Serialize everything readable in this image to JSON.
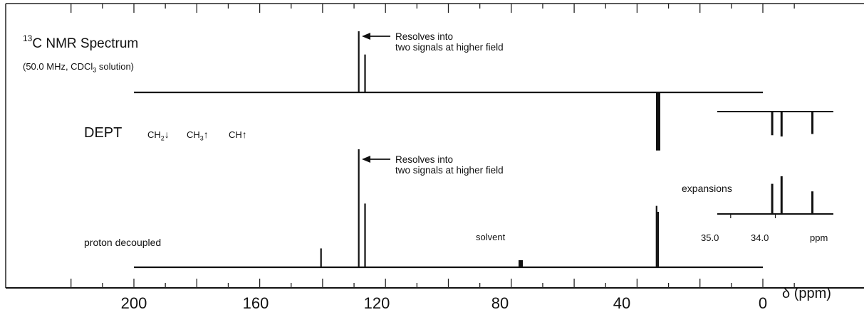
{
  "chart_data": {
    "type": "line",
    "title": "13C NMR Spectrum",
    "title_parts": {
      "sup": "13",
      "main": "C NMR Spectrum"
    },
    "conditions": {
      "prefix": "(50.0 MHz, CDCl",
      "sub": "3",
      "suffix": " solution)"
    },
    "xlabel": "δ (ppm)",
    "xlim": [
      225,
      -12
    ],
    "x_ticks": [
      200,
      160,
      120,
      80,
      40,
      0
    ],
    "x_tick_labels": [
      "200",
      "160",
      "120",
      "80",
      "40",
      "0"
    ],
    "grid": false,
    "series": [
      {
        "name": "DEPT",
        "baseline_ppm": [
          200,
          0
        ],
        "peaks": [
          {
            "ppm": 128.5,
            "intensity": 1.0
          },
          {
            "ppm": 126.5,
            "intensity": 0.62
          },
          {
            "ppm": 33.3,
            "intensity": -0.95,
            "style": "multiplet"
          }
        ]
      },
      {
        "name": "proton decoupled",
        "baseline_ppm": [
          200,
          0
        ],
        "peaks": [
          {
            "ppm": 140.5,
            "intensity": 0.16
          },
          {
            "ppm": 128.5,
            "intensity": 1.0
          },
          {
            "ppm": 126.5,
            "intensity": 0.54
          },
          {
            "ppm": 77.0,
            "intensity": 0.06,
            "style": "solvent"
          },
          {
            "ppm": 33.8,
            "intensity": 0.52
          },
          {
            "ppm": 33.3,
            "intensity": 0.47
          }
        ]
      }
    ],
    "dept_legend": [
      {
        "prefix": "CH",
        "sub": "2",
        "arrow": "↓"
      },
      {
        "prefix": "CH",
        "sub": "3",
        "arrow": "↑"
      },
      {
        "prefix": "CH",
        "sub": "",
        "arrow": "↑"
      }
    ],
    "annotations": {
      "resolves_top": [
        "Resolves into",
        "two signals at higher field"
      ],
      "resolves_bottom": [
        "Resolves into",
        "two signals at higher field"
      ],
      "solvent": "solvent",
      "decoupled": "proton decoupled",
      "dept_title": "DEPT",
      "expansions": "expansions"
    },
    "inset": {
      "label": "expansions",
      "xlim": [
        35.3,
        32.7
      ],
      "x_ticks": [
        35.0,
        34.0
      ],
      "x_tick_labels": [
        "35.0",
        "34.0"
      ],
      "unit": "ppm",
      "dept_peaks": [
        {
          "ppm": 34.07,
          "intensity": -0.95
        },
        {
          "ppm": 33.86,
          "intensity": -1.0
        },
        {
          "ppm": 33.17,
          "intensity": -0.9
        }
      ],
      "decoupled_peaks": [
        {
          "ppm": 34.07,
          "intensity": 0.8
        },
        {
          "ppm": 33.86,
          "intensity": 1.0
        },
        {
          "ppm": 33.17,
          "intensity": 0.6
        }
      ]
    }
  }
}
